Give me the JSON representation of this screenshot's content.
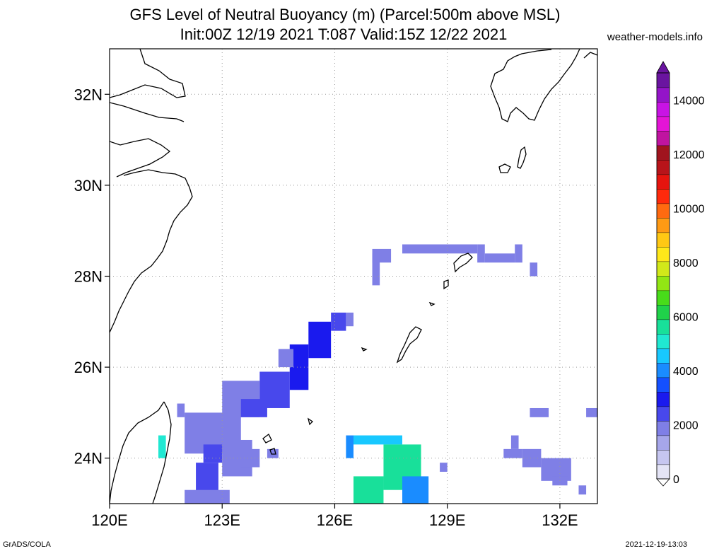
{
  "title_line1": "GFS Level of Neutral Buoyancy (m) (Parcel:500m above MSL)",
  "title_line2": "Init:00Z 12/19 2021 T:087 Valid:15Z 12/22 2021",
  "site": "weather-models.info",
  "footer_left": "GrADS/COLA",
  "footer_right": "2021-12-19-13:03",
  "map": {
    "lon_range": [
      120,
      133
    ],
    "lat_range": [
      23,
      33
    ],
    "lon_ticks": [
      {
        "value": 120,
        "label": "120E"
      },
      {
        "value": 123,
        "label": "123E"
      },
      {
        "value": 126,
        "label": "126E"
      },
      {
        "value": 129,
        "label": "129E"
      },
      {
        "value": 132,
        "label": "132E"
      }
    ],
    "lat_ticks": [
      {
        "value": 24,
        "label": "24N"
      },
      {
        "value": 26,
        "label": "26N"
      },
      {
        "value": 28,
        "label": "28N"
      },
      {
        "value": 30,
        "label": "30N"
      },
      {
        "value": 32,
        "label": "32N"
      }
    ],
    "grid": true
  },
  "colorbar": {
    "min": 0,
    "max": 15000,
    "labels": [
      {
        "value": 0,
        "label": "0"
      },
      {
        "value": 2000,
        "label": "2000"
      },
      {
        "value": 4000,
        "label": "4000"
      },
      {
        "value": 6000,
        "label": "6000"
      },
      {
        "value": 8000,
        "label": "8000"
      },
      {
        "value": 10000,
        "label": "10000"
      },
      {
        "value": 12000,
        "label": "12000"
      },
      {
        "value": 14000,
        "label": "14000"
      }
    ],
    "colors": [
      "#e4e4f6",
      "#c6c6f0",
      "#a6a6ea",
      "#7f7fe6",
      "#4848ec",
      "#1a1aee",
      "#1450ff",
      "#1a8cff",
      "#18c8ff",
      "#20e8d2",
      "#18e09a",
      "#20d24a",
      "#48dc1a",
      "#92e614",
      "#d2e81a",
      "#ffe81a",
      "#ffc814",
      "#ff9a14",
      "#ff6a10",
      "#ff2a0c",
      "#e6140e",
      "#b8141a",
      "#a0141e",
      "#c014a0",
      "#e414d6",
      "#c814e4",
      "#9414c8",
      "#6a14a0"
    ]
  },
  "lnb_blobs": [
    {
      "lon0": 121.3,
      "lat0": 24.0,
      "lon1": 121.5,
      "lat1": 24.5,
      "value": 5000
    },
    {
      "lon0": 121.8,
      "lat0": 24.9,
      "lon1": 122.0,
      "lat1": 25.2,
      "value": 1800
    },
    {
      "lon0": 122.0,
      "lat0": 24.1,
      "lon1": 123.5,
      "lat1": 25.0,
      "value": 1900
    },
    {
      "lon0": 122.5,
      "lat0": 23.9,
      "lon1": 123.0,
      "lat1": 24.3,
      "value": 2600
    },
    {
      "lon0": 122.3,
      "lat0": 23.2,
      "lon1": 122.9,
      "lat1": 23.9,
      "value": 2300
    },
    {
      "lon0": 122.0,
      "lat0": 23.0,
      "lon1": 123.2,
      "lat1": 23.3,
      "value": 1900
    },
    {
      "lon0": 123.0,
      "lat0": 23.6,
      "lon1": 123.8,
      "lat1": 24.4,
      "value": 1800
    },
    {
      "lon0": 123.5,
      "lat0": 23.8,
      "lon1": 124.0,
      "lat1": 24.2,
      "value": 1800
    },
    {
      "lon0": 124.2,
      "lat0": 24.0,
      "lon1": 124.5,
      "lat1": 24.2,
      "value": 1800
    },
    {
      "lon0": 123.0,
      "lat0": 24.9,
      "lon1": 124.0,
      "lat1": 25.7,
      "value": 1900
    },
    {
      "lon0": 123.5,
      "lat0": 24.9,
      "lon1": 124.2,
      "lat1": 25.3,
      "value": 2600
    },
    {
      "lon0": 124.0,
      "lat0": 25.1,
      "lon1": 124.8,
      "lat1": 25.9,
      "value": 2500
    },
    {
      "lon0": 124.8,
      "lat0": 25.5,
      "lon1": 125.3,
      "lat1": 26.5,
      "value": 2800
    },
    {
      "lon0": 125.3,
      "lat0": 26.2,
      "lon1": 125.9,
      "lat1": 27.0,
      "value": 3000
    },
    {
      "lon0": 125.9,
      "lat0": 26.8,
      "lon1": 126.3,
      "lat1": 27.2,
      "value": 2300
    },
    {
      "lon0": 124.5,
      "lat0": 26.0,
      "lon1": 124.9,
      "lat1": 26.4,
      "value": 1900
    },
    {
      "lon0": 126.3,
      "lat0": 26.9,
      "lon1": 126.5,
      "lat1": 27.2,
      "value": 1900
    },
    {
      "lon0": 126.3,
      "lat0": 24.0,
      "lon1": 126.5,
      "lat1": 24.5,
      "value": 4200
    },
    {
      "lon0": 126.5,
      "lat0": 24.3,
      "lon1": 127.8,
      "lat1": 24.5,
      "value": 4600
    },
    {
      "lon0": 127.3,
      "lat0": 23.3,
      "lon1": 128.3,
      "lat1": 24.3,
      "value": 5600
    },
    {
      "lon0": 126.5,
      "lat0": 23.0,
      "lon1": 127.3,
      "lat1": 23.6,
      "value": 5400
    },
    {
      "lon0": 127.8,
      "lat0": 23.0,
      "lon1": 128.5,
      "lat1": 23.6,
      "value": 3800
    },
    {
      "lon0": 128.8,
      "lat0": 23.7,
      "lon1": 129.0,
      "lat1": 23.9,
      "value": 1800
    },
    {
      "lon0": 127.0,
      "lat0": 27.8,
      "lon1": 127.2,
      "lat1": 28.5,
      "value": 1900
    },
    {
      "lon0": 127.0,
      "lat0": 28.3,
      "lon1": 127.5,
      "lat1": 28.6,
      "value": 1900
    },
    {
      "lon0": 127.8,
      "lat0": 28.5,
      "lon1": 129.8,
      "lat1": 28.7,
      "value": 1900
    },
    {
      "lon0": 129.8,
      "lat0": 28.3,
      "lon1": 130.0,
      "lat1": 28.7,
      "value": 1900
    },
    {
      "lon0": 130.0,
      "lat0": 28.3,
      "lon1": 130.8,
      "lat1": 28.5,
      "value": 1900
    },
    {
      "lon0": 130.8,
      "lat0": 28.3,
      "lon1": 131.0,
      "lat1": 28.7,
      "value": 1900
    },
    {
      "lon0": 131.2,
      "lat0": 28.0,
      "lon1": 131.4,
      "lat1": 28.3,
      "value": 1900
    },
    {
      "lon0": 130.5,
      "lat0": 24.0,
      "lon1": 131.0,
      "lat1": 24.2,
      "value": 1900
    },
    {
      "lon0": 130.7,
      "lat0": 24.2,
      "lon1": 130.9,
      "lat1": 24.5,
      "value": 1900
    },
    {
      "lon0": 131.0,
      "lat0": 23.8,
      "lon1": 131.5,
      "lat1": 24.2,
      "value": 1900
    },
    {
      "lon0": 131.5,
      "lat0": 23.5,
      "lon1": 132.3,
      "lat1": 24.0,
      "value": 1900
    },
    {
      "lon0": 131.8,
      "lat0": 23.4,
      "lon1": 132.2,
      "lat1": 23.6,
      "value": 1900
    },
    {
      "lon0": 132.5,
      "lat0": 23.2,
      "lon1": 132.7,
      "lat1": 23.4,
      "value": 1900
    },
    {
      "lon0": 131.2,
      "lat0": 24.9,
      "lon1": 131.7,
      "lat1": 25.1,
      "value": 1900
    },
    {
      "lon0": 132.7,
      "lat0": 24.9,
      "lon1": 133.0,
      "lat1": 25.1,
      "value": 1900
    }
  ]
}
